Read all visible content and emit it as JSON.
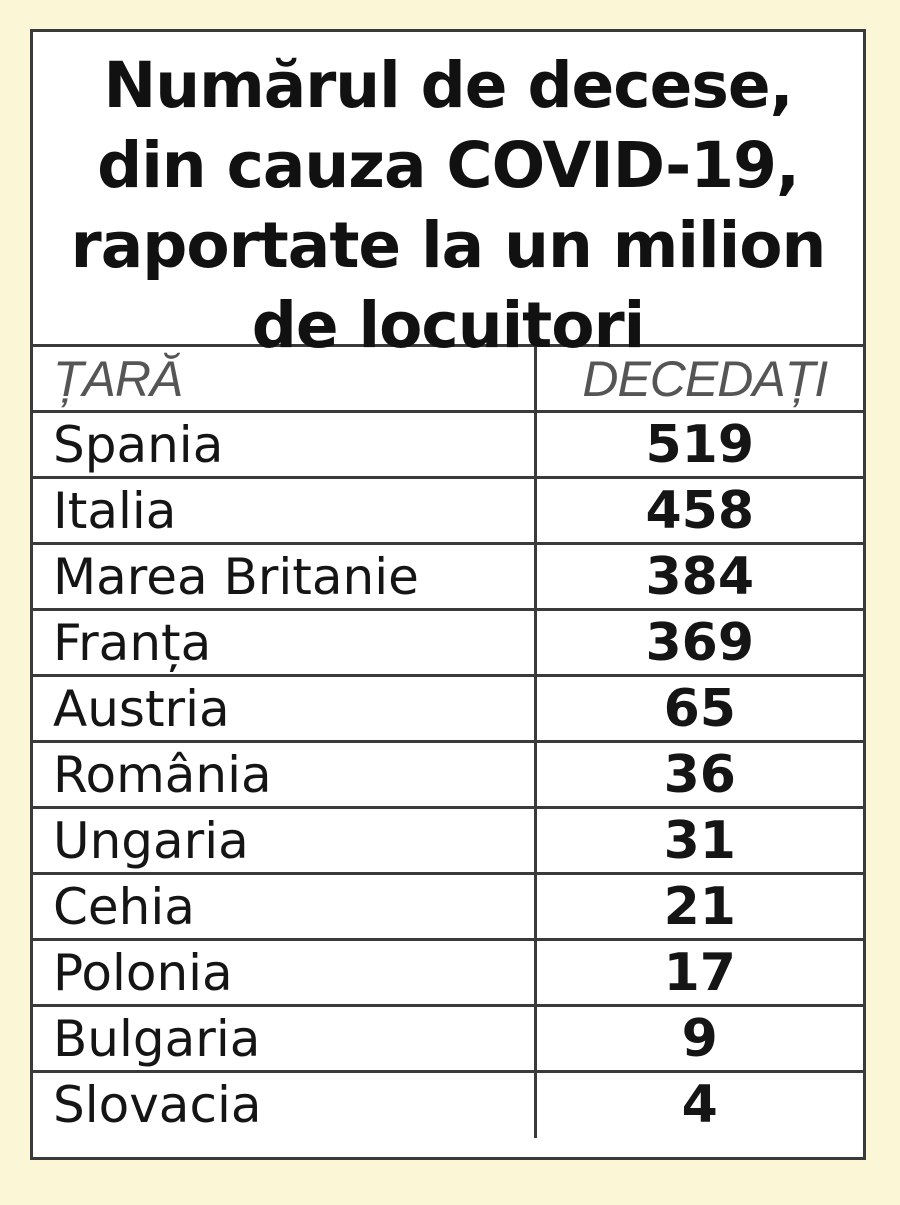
{
  "chart_data": {
    "type": "table",
    "title_lines": [
      "Numărul de decese,",
      "din cauza COVID-19,",
      "raportate la un milion",
      "de locuitori"
    ],
    "columns": [
      "ȚARĂ",
      "DECEDAȚI"
    ],
    "rows": [
      {
        "country": "Spania",
        "deaths": 519
      },
      {
        "country": "Italia",
        "deaths": 458
      },
      {
        "country": "Marea Britanie",
        "deaths": 384
      },
      {
        "country": "Franța",
        "deaths": 369
      },
      {
        "country": "Austria",
        "deaths": 65
      },
      {
        "country": "România",
        "deaths": 36
      },
      {
        "country": "Ungaria",
        "deaths": 31
      },
      {
        "country": "Cehia",
        "deaths": 21
      },
      {
        "country": "Polonia",
        "deaths": 17
      },
      {
        "country": "Bulgaria",
        "deaths": 9
      },
      {
        "country": "Slovacia",
        "deaths": 4
      }
    ]
  }
}
